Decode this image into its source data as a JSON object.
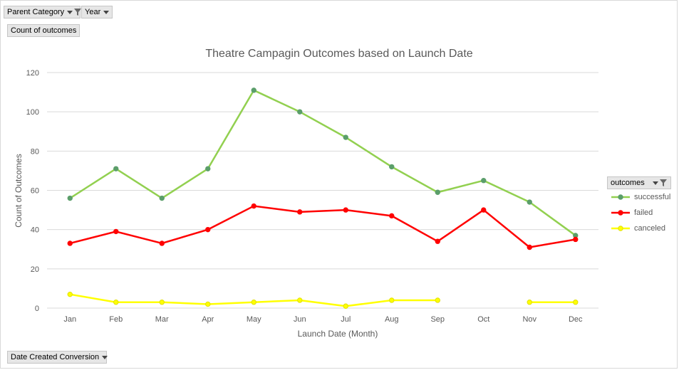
{
  "filters": {
    "parent_category": "Parent Category",
    "year": "Year",
    "count_of_outcomes": "Count of outcomes",
    "date_created": "Date Created Conversion"
  },
  "legend": {
    "title": "outcomes"
  },
  "colors": {
    "successful_line": "#92d050",
    "successful_marker": "#5b9e6a",
    "failed": "#ff0000",
    "canceled": "#ffff00",
    "canceled_marker": "#e0e000",
    "grid": "#d9d9d9",
    "text": "#595959"
  },
  "chart_data": {
    "type": "line",
    "title": "Theatre Campagin Outcomes based on Launch Date",
    "xlabel": "Launch Date (Month)",
    "ylabel": "Count of Outcomes",
    "ylim": [
      0,
      120
    ],
    "yticks": [
      0,
      20,
      40,
      60,
      80,
      100,
      120
    ],
    "grid": true,
    "legend_position": "right",
    "categories": [
      "Jan",
      "Feb",
      "Mar",
      "Apr",
      "May",
      "Jun",
      "Jul",
      "Aug",
      "Sep",
      "Oct",
      "Nov",
      "Dec"
    ],
    "series": [
      {
        "name": "successful",
        "values": [
          56,
          71,
          56,
          71,
          111,
          100,
          87,
          72,
          59,
          65,
          54,
          37
        ]
      },
      {
        "name": "failed",
        "values": [
          33,
          39,
          33,
          40,
          52,
          49,
          50,
          47,
          34,
          50,
          31,
          35
        ]
      },
      {
        "name": "canceled",
        "values": [
          7,
          3,
          3,
          2,
          3,
          4,
          1,
          4,
          4,
          null,
          3,
          3
        ]
      }
    ]
  }
}
